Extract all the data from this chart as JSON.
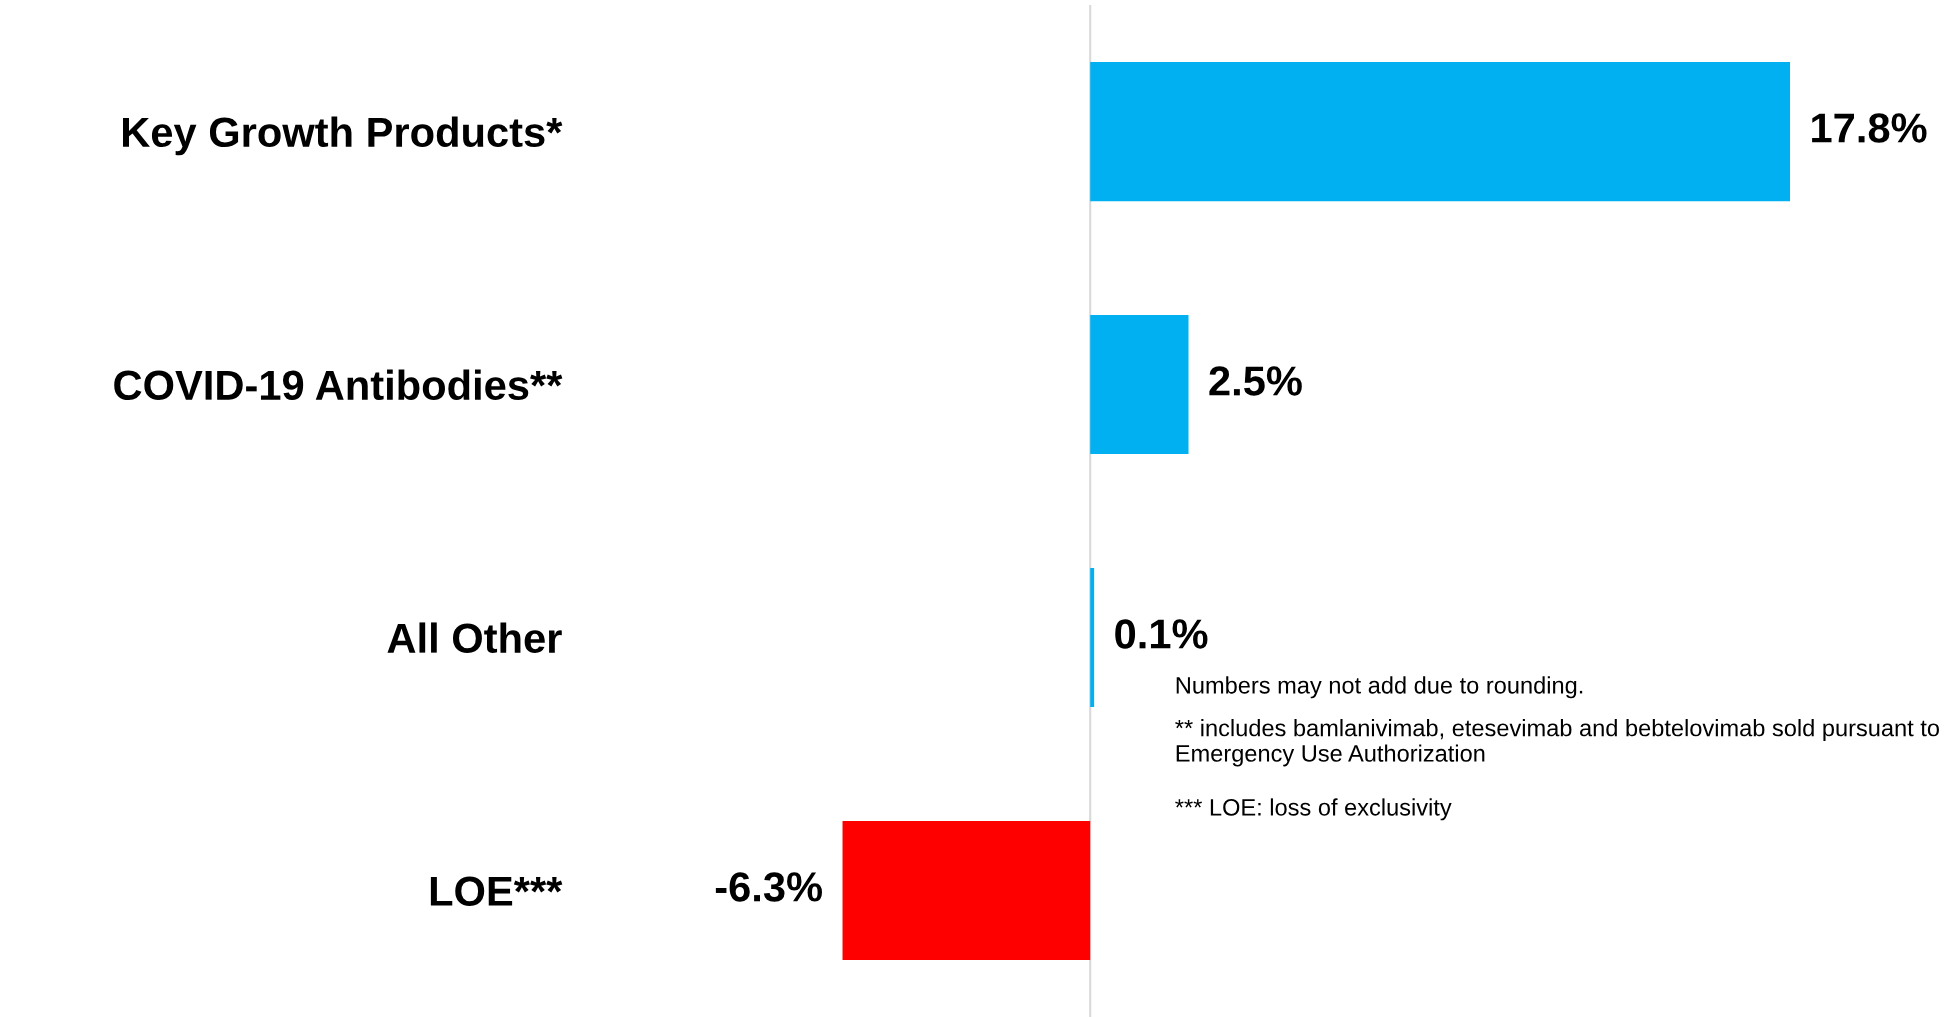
{
  "chart_data": {
    "type": "bar",
    "orientation": "horizontal",
    "categories": [
      "Key Growth Products*",
      "COVID-19 Antibodies**",
      "All Other",
      "LOE***"
    ],
    "values": [
      17.8,
      2.5,
      0.1,
      -6.3
    ],
    "colors": [
      "#00b0f0",
      "#00b0f0",
      "#00b0f0",
      "#ff0000"
    ],
    "value_labels": [
      "17.8%",
      "2.5%",
      "0.1%",
      "-6.3%"
    ],
    "tick_labels": "y",
    "grid": false,
    "legend": false,
    "ref_lines": [
      {
        "axis": "x",
        "value": 0,
        "color": "#d9d9d9"
      }
    ],
    "annotations": [
      "Numbers may not add due to rounding.",
      "** includes bamlanivimab, etesevimab and bebtelovimab sold pursuant to Emergency Use Authorization",
      "*** LOE: loss of exclusivity"
    ]
  }
}
